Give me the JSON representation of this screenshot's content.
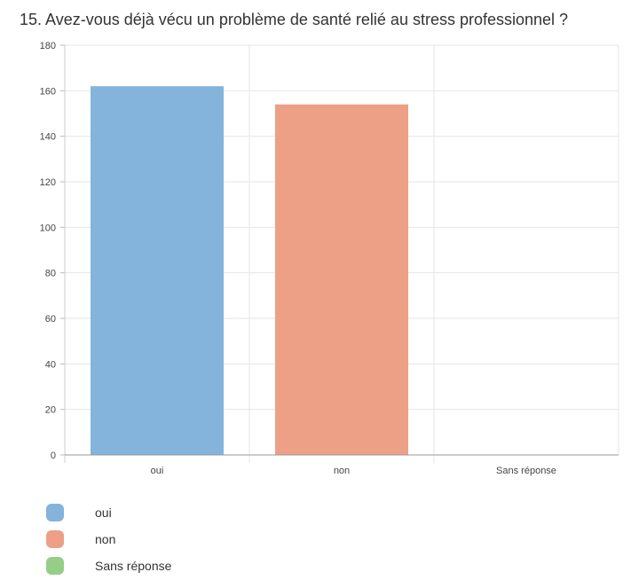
{
  "title": "15. Avez-vous déjà vécu un problème de santé relié au stress professionnel ?",
  "chart_data": {
    "type": "bar",
    "categories": [
      "oui",
      "non",
      "Sans réponse"
    ],
    "values": [
      162,
      154,
      0
    ],
    "colors": [
      "#84b3dc",
      "#eda086",
      "#95cf87"
    ],
    "ylim": [
      0,
      180
    ],
    "yticks": [
      0,
      20,
      40,
      60,
      80,
      100,
      120,
      140,
      160,
      180
    ],
    "grid": true,
    "legend_position": "bottom-left"
  }
}
